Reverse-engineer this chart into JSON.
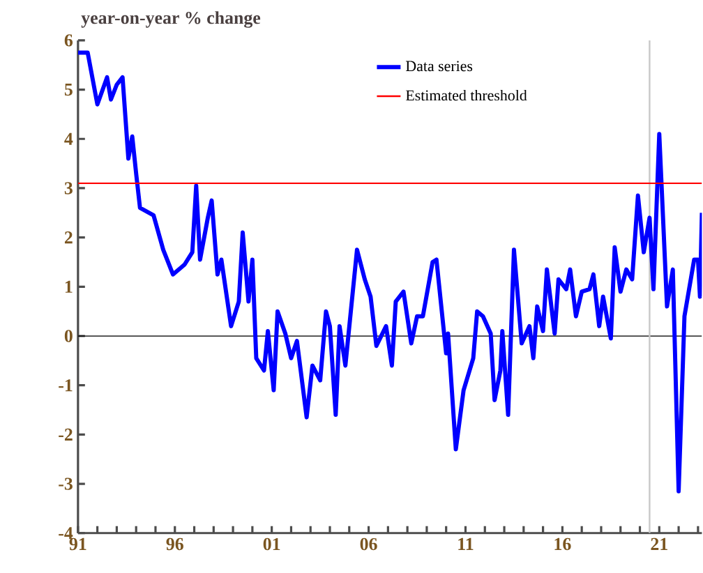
{
  "chart_data": {
    "type": "line",
    "title": "year-on-year % change",
    "xlim": [
      1991,
      2023.2
    ],
    "ylim": [
      -4,
      6
    ],
    "yticks": [
      -4,
      -3,
      -2,
      -1,
      0,
      1,
      2,
      3,
      4,
      5,
      6
    ],
    "xticks": [
      {
        "value": 1991,
        "label": "91"
      },
      {
        "value": 1992,
        "label": null
      },
      {
        "value": 1993,
        "label": null
      },
      {
        "value": 1994,
        "label": null
      },
      {
        "value": 1995,
        "label": null
      },
      {
        "value": 1996,
        "label": "96"
      },
      {
        "value": 1997,
        "label": null
      },
      {
        "value": 1998,
        "label": null
      },
      {
        "value": 1999,
        "label": null
      },
      {
        "value": 2000,
        "label": null
      },
      {
        "value": 2001,
        "label": "01"
      },
      {
        "value": 2002,
        "label": null
      },
      {
        "value": 2003,
        "label": null
      },
      {
        "value": 2004,
        "label": null
      },
      {
        "value": 2005,
        "label": null
      },
      {
        "value": 2006,
        "label": "06"
      },
      {
        "value": 2007,
        "label": null
      },
      {
        "value": 2008,
        "label": null
      },
      {
        "value": 2009,
        "label": null
      },
      {
        "value": 2010,
        "label": null
      },
      {
        "value": 2011,
        "label": "11"
      },
      {
        "value": 2012,
        "label": null
      },
      {
        "value": 2013,
        "label": null
      },
      {
        "value": 2014,
        "label": null
      },
      {
        "value": 2015,
        "label": null
      },
      {
        "value": 2016,
        "label": "16"
      },
      {
        "value": 2017,
        "label": null
      },
      {
        "value": 2018,
        "label": null
      },
      {
        "value": 2019,
        "label": null
      },
      {
        "value": 2020,
        "label": null
      },
      {
        "value": 2021,
        "label": "21"
      },
      {
        "value": 2022,
        "label": null
      },
      {
        "value": 2023,
        "label": null
      }
    ],
    "legend": "top",
    "grid": false,
    "marker": "none",
    "line_style": "solid",
    "ref_lines": [
      {
        "axis": "y",
        "value": 0,
        "color": "#000000"
      },
      {
        "axis": "x",
        "value": 2020.5,
        "color": "#c8c8c8"
      }
    ],
    "series": [
      {
        "name": "Data series",
        "color": "#0000ff",
        "x": [
          1991.0,
          1991.5,
          1992.0,
          1992.5,
          1992.7,
          1993.0,
          1993.3,
          1993.6,
          1993.8,
          1994.0,
          1994.2,
          1994.9,
          1995.4,
          1995.9,
          1996.5,
          1996.9,
          1997.1,
          1997.3,
          1997.7,
          1997.9,
          1998.2,
          1998.4,
          1998.9,
          1999.3,
          1999.5,
          1999.8,
          2000.0,
          2000.2,
          2000.6,
          2000.8,
          2001.1,
          2001.3,
          2001.7,
          2002.0,
          2002.3,
          2002.8,
          2003.1,
          2003.5,
          2003.8,
          2004.0,
          2004.3,
          2004.5,
          2004.8,
          2005.4,
          2005.8,
          2006.1,
          2006.4,
          2006.9,
          2007.2,
          2007.4,
          2007.8,
          2008.2,
          2008.5,
          2008.8,
          2009.3,
          2009.5,
          2010.0,
          2010.1,
          2010.5,
          2010.9,
          2011.4,
          2011.6,
          2011.9,
          2012.3,
          2012.5,
          2012.8,
          2012.9,
          2013.2,
          2013.5,
          2013.9,
          2014.3,
          2014.5,
          2014.7,
          2015.0,
          2015.2,
          2015.6,
          2015.8,
          2016.2,
          2016.4,
          2016.7,
          2017.0,
          2017.4,
          2017.6,
          2017.9,
          2018.1,
          2018.5,
          2018.7,
          2019.0,
          2019.3,
          2019.6,
          2019.9,
          2020.2,
          2020.5,
          2020.7,
          2021.0,
          2021.4,
          2021.7,
          2022.0,
          2022.3,
          2022.8,
          2023.0,
          2023.1,
          2023.2
        ],
        "values": [
          5.75,
          5.75,
          4.7,
          5.25,
          4.8,
          5.1,
          5.25,
          3.6,
          4.05,
          3.3,
          2.6,
          2.45,
          1.75,
          1.25,
          1.45,
          1.7,
          3.05,
          1.55,
          2.4,
          2.75,
          1.25,
          1.55,
          0.2,
          0.7,
          2.1,
          0.7,
          1.55,
          -0.45,
          -0.7,
          0.1,
          -1.1,
          0.5,
          0.05,
          -0.45,
          -0.1,
          -1.65,
          -0.6,
          -0.9,
          0.5,
          0.2,
          -1.6,
          0.2,
          -0.6,
          1.75,
          1.15,
          0.8,
          -0.2,
          0.2,
          -0.6,
          0.7,
          0.9,
          -0.15,
          0.4,
          0.4,
          1.5,
          1.55,
          -0.35,
          0.05,
          -2.3,
          -1.1,
          -0.45,
          0.5,
          0.4,
          0.05,
          -1.3,
          -0.7,
          0.1,
          -1.6,
          1.75,
          -0.15,
          0.2,
          -0.45,
          0.6,
          0.1,
          1.35,
          0.05,
          1.15,
          0.95,
          1.35,
          0.4,
          0.9,
          0.95,
          1.25,
          0.2,
          0.8,
          -0.05,
          1.8,
          0.9,
          1.35,
          1.15,
          2.85,
          1.7,
          2.4,
          0.95,
          4.1,
          0.6,
          1.35,
          -3.15,
          0.4,
          1.55,
          1.55,
          0.8,
          2.5
        ]
      },
      {
        "name": "Estimated threshold",
        "color": "#ff0000",
        "x": [
          1991,
          2023.2
        ],
        "values": [
          3.1,
          3.1
        ]
      }
    ]
  }
}
